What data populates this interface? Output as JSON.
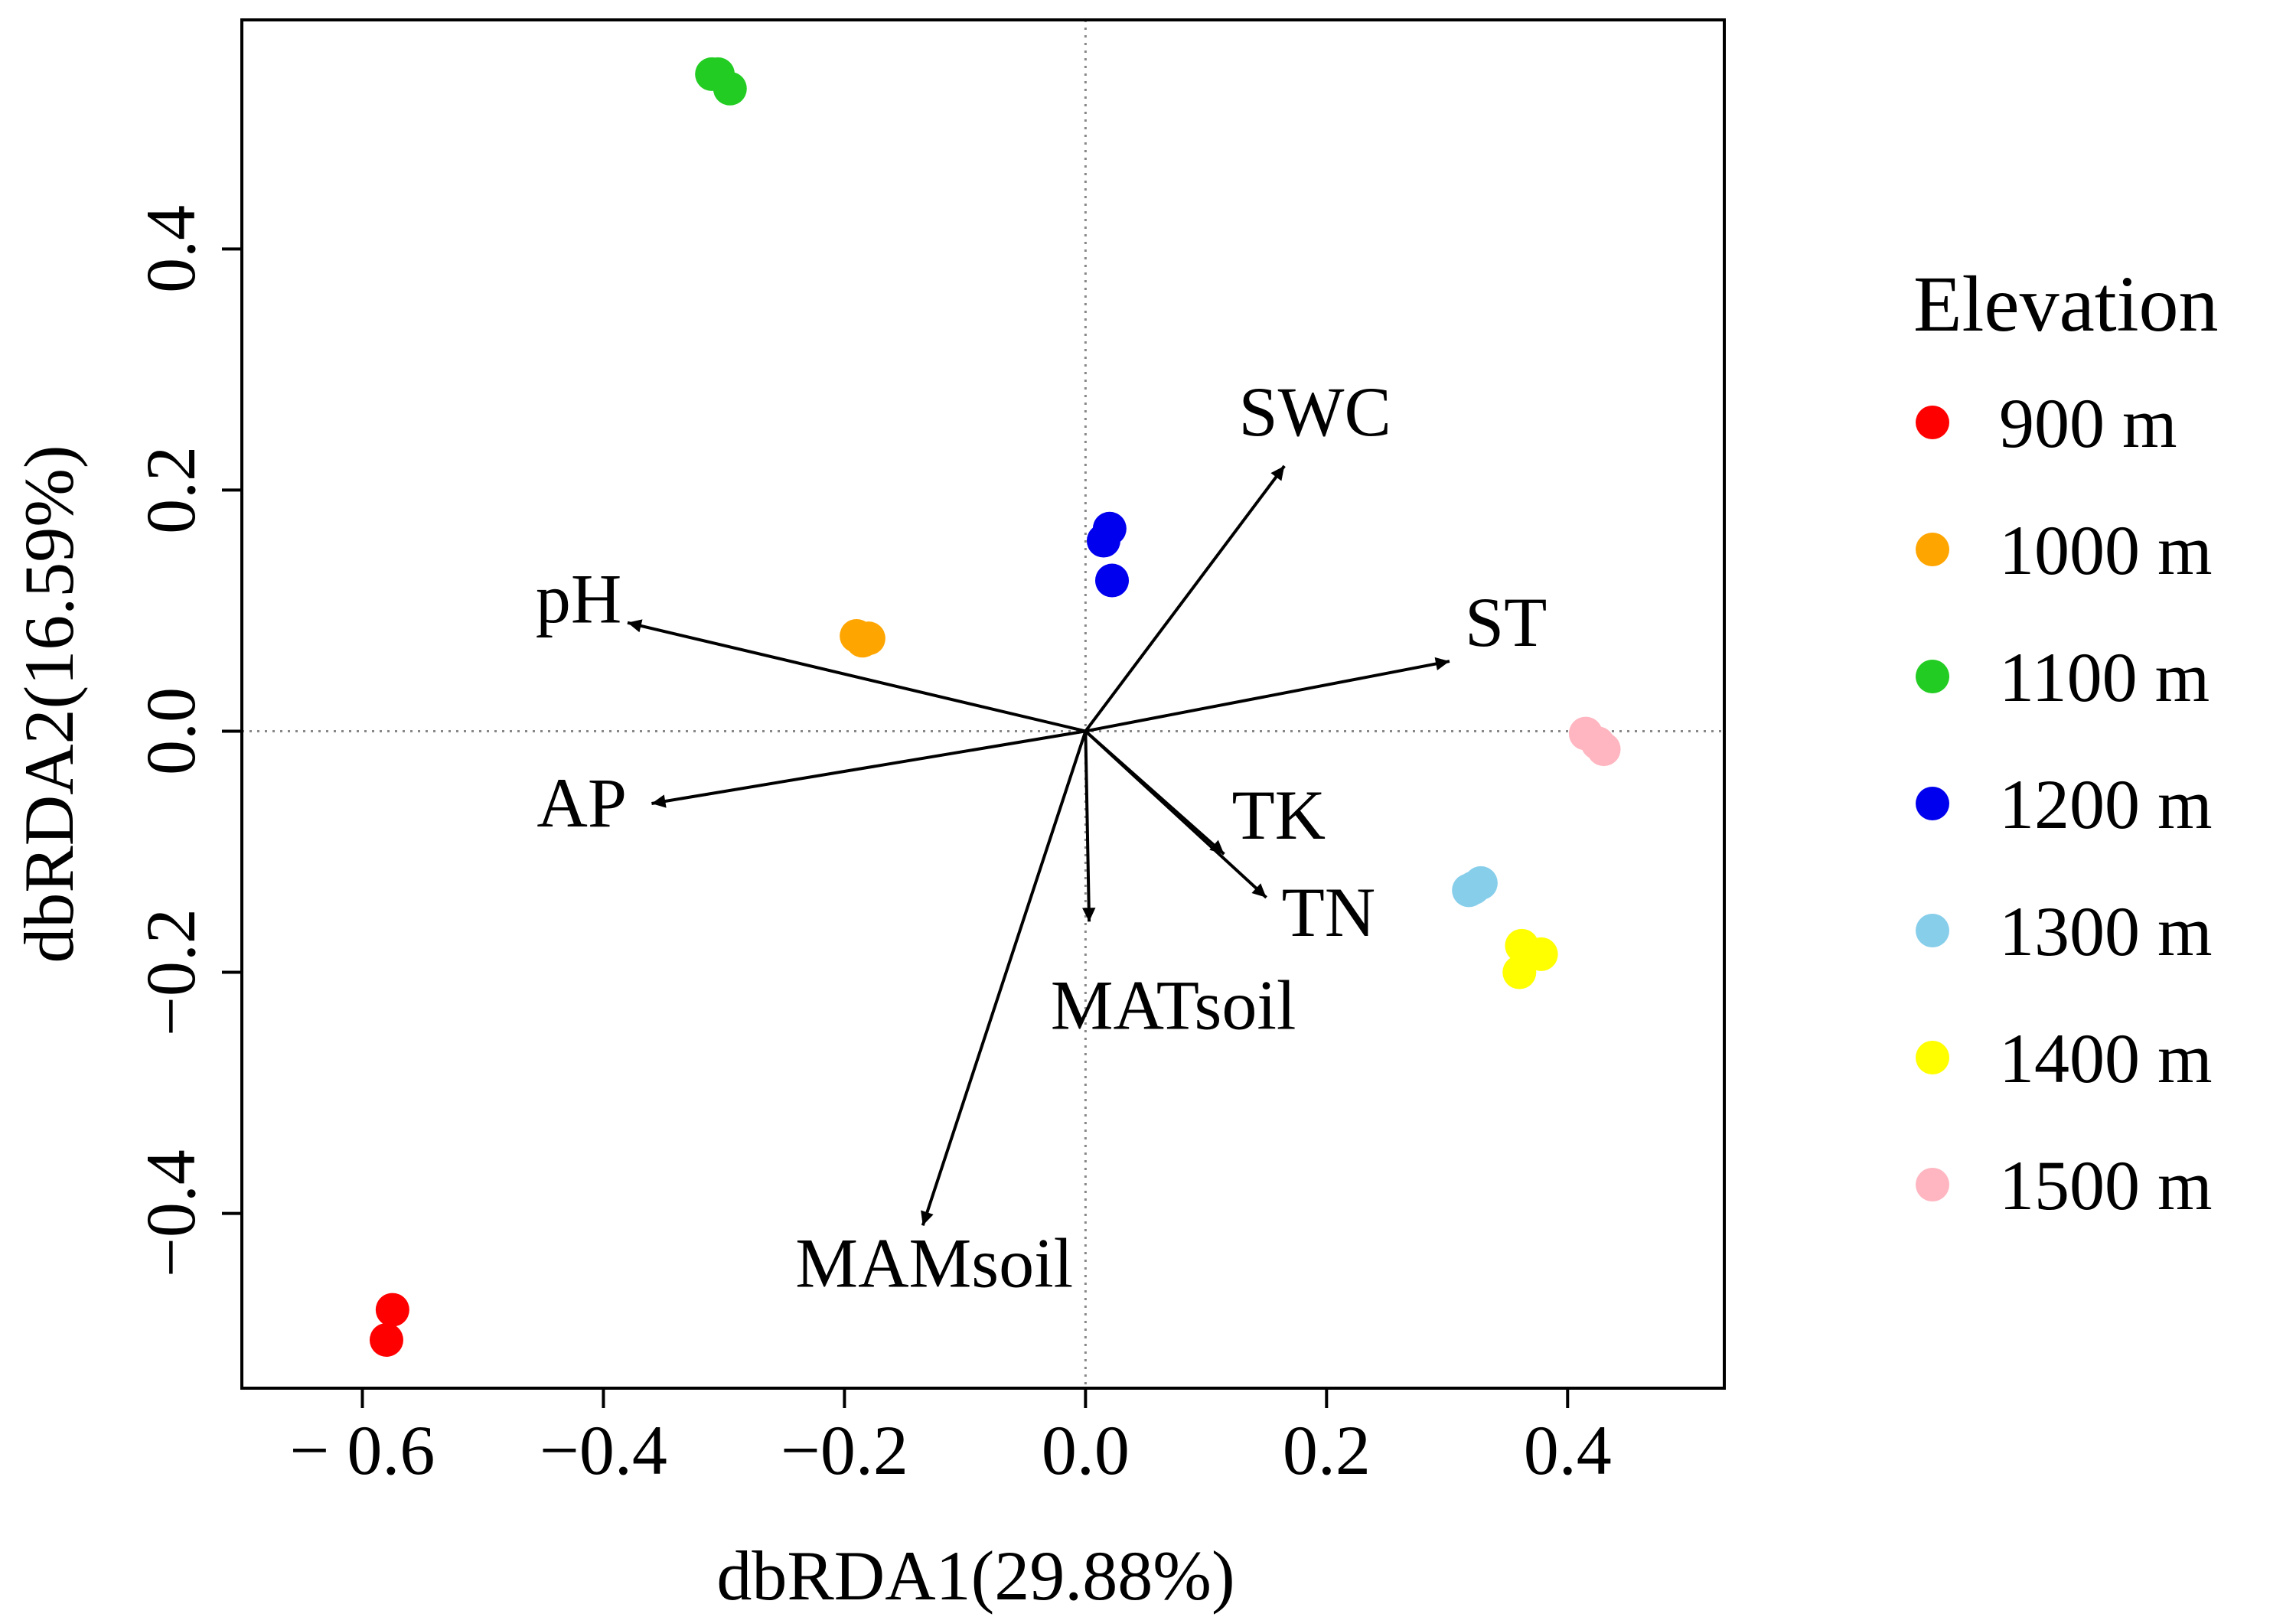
{
  "chart_data": {
    "type": "scatter",
    "title": "",
    "xlabel": "dbRDA1(29.88%)",
    "ylabel": "dbRDA2(16.59%)",
    "xlim": [
      -0.7,
      0.53
    ],
    "ylim": [
      -0.545,
      0.59
    ],
    "x_ticks": [
      -0.6,
      -0.4,
      -0.2,
      0.0,
      0.2,
      0.4
    ],
    "x_tick_labels": [
      "− 0.6",
      "−0.4",
      "−0.2",
      "0.0",
      "0.2",
      "0.4"
    ],
    "y_ticks": [
      -0.4,
      -0.2,
      0.0,
      0.2,
      0.4
    ],
    "y_tick_labels": [
      "−0.4",
      "−0.2",
      "0.0",
      "0.2",
      "0.4"
    ],
    "reference_lines": {
      "x": 0,
      "y": 0,
      "style": "dotted"
    },
    "legend": {
      "title": "Elevation",
      "position": "right"
    },
    "series": [
      {
        "name": "900 m",
        "color": "#ff0000",
        "points": [
          [
            -0.575,
            -0.48
          ],
          [
            -0.58,
            -0.505
          ]
        ]
      },
      {
        "name": "1000 m",
        "color": "#ffa500",
        "points": [
          [
            -0.19,
            0.079
          ],
          [
            -0.18,
            0.077
          ],
          [
            -0.185,
            0.075
          ]
        ]
      },
      {
        "name": "1100 m",
        "color": "#22cc22",
        "points": [
          [
            -0.31,
            0.545
          ],
          [
            -0.305,
            0.545
          ],
          [
            -0.295,
            0.533
          ]
        ]
      },
      {
        "name": "1200 m",
        "color": "#0000ee",
        "points": [
          [
            0.02,
            0.168
          ],
          [
            0.015,
            0.158
          ],
          [
            0.022,
            0.125
          ]
        ]
      },
      {
        "name": "1300 m",
        "color": "#87ceeb",
        "points": [
          [
            0.318,
            -0.132
          ],
          [
            0.328,
            -0.126
          ],
          [
            0.322,
            -0.13
          ]
        ]
      },
      {
        "name": "1400 m",
        "color": "#ffff00",
        "points": [
          [
            0.362,
            -0.178
          ],
          [
            0.378,
            -0.185
          ],
          [
            0.36,
            -0.2
          ]
        ]
      },
      {
        "name": "1500 m",
        "color": "#ffb6c1",
        "points": [
          [
            0.415,
            -0.002
          ],
          [
            0.43,
            -0.015
          ],
          [
            0.425,
            -0.01
          ]
        ]
      }
    ],
    "vectors": [
      {
        "name": "SWC",
        "end": [
          0.165,
          0.22
        ]
      },
      {
        "name": "pH",
        "end": [
          -0.38,
          0.09
        ]
      },
      {
        "name": "ST",
        "end": [
          0.302,
          0.058
        ]
      },
      {
        "name": "AP",
        "end": [
          -0.36,
          -0.06
        ]
      },
      {
        "name": "TK",
        "end": [
          0.115,
          -0.102
        ]
      },
      {
        "name": "TN",
        "end": [
          0.15,
          -0.138
        ]
      },
      {
        "name": "MATsoil",
        "end": [
          0.003,
          -0.158
        ]
      },
      {
        "name": "MAMsoil",
        "end": [
          -0.135,
          -0.41
        ]
      }
    ]
  }
}
